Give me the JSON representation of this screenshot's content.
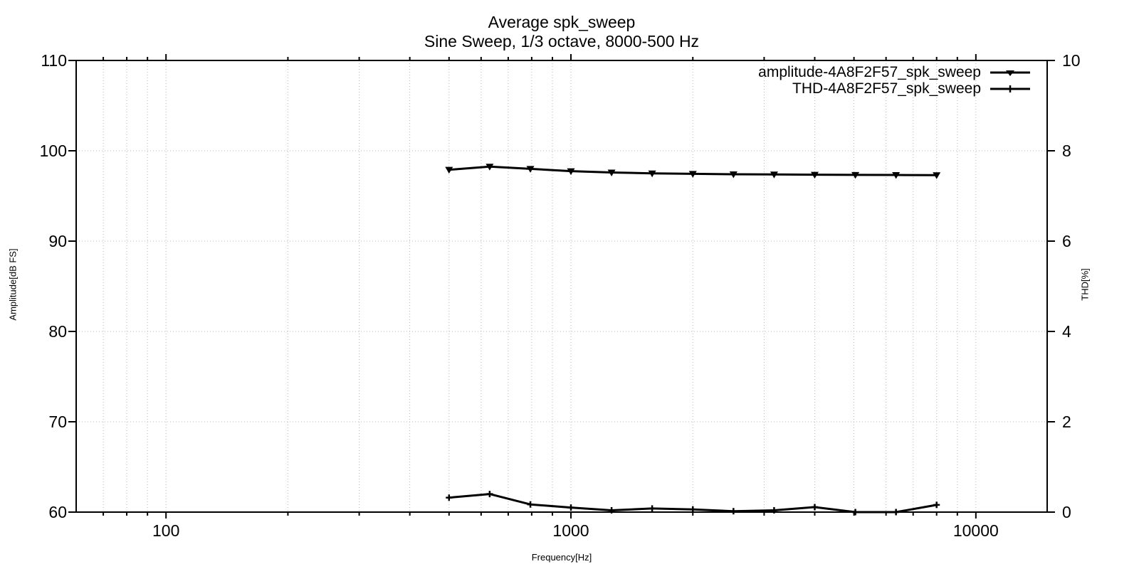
{
  "title": {
    "line1": "Average spk_sweep",
    "line2": "Sine Sweep, 1/3 octave, 8000-500 Hz"
  },
  "axes": {
    "x_label": "Frequency[Hz]",
    "y_left_label": "Amplitude[dB FS]",
    "y_right_label": "THD[%]",
    "x_ticks": [
      100,
      1000,
      10000
    ],
    "y_left_ticks": [
      60,
      70,
      80,
      90,
      100,
      110
    ],
    "y_right_ticks": [
      0,
      2,
      4,
      6,
      8,
      10
    ]
  },
  "legend": [
    {
      "label": "amplitude-4A8F2F57_spk_sweep",
      "marker": "filled-triangle-down"
    },
    {
      "label": "THD-4A8F2F57_spk_sweep",
      "marker": "plus"
    }
  ],
  "colors": {
    "line": "#000000",
    "grid": "#b8b8b8",
    "text": "#000000",
    "background": "#ffffff"
  },
  "chart_data": {
    "type": "line",
    "title": "Average spk_sweep",
    "subtitle": "Sine Sweep, 1/3 octave, 8000-500 Hz",
    "xlabel": "Frequency[Hz]",
    "ylabel_left": "Amplitude[dB FS]",
    "ylabel_right": "THD[%]",
    "x_scale": "log",
    "xlim": [
      60,
      15000
    ],
    "ylim_left": [
      60,
      110
    ],
    "ylim_right": [
      0,
      10
    ],
    "grid": true,
    "legend_position": "top-right-inside",
    "x": [
      500,
      630,
      794,
      1000,
      1260,
      1587,
      2000,
      2520,
      3175,
      4000,
      5040,
      6350,
      8000
    ],
    "series": [
      {
        "name": "amplitude-4A8F2F57_spk_sweep",
        "axis": "left",
        "marker": "filled-triangle-down",
        "values": [
          97.9,
          98.25,
          98.0,
          97.75,
          97.6,
          97.5,
          97.45,
          97.4,
          97.38,
          97.35,
          97.33,
          97.32,
          97.3
        ]
      },
      {
        "name": "THD-4A8F2F57_spk_sweep",
        "axis": "right",
        "marker": "plus",
        "values": [
          0.32,
          0.4,
          0.17,
          0.1,
          0.04,
          0.08,
          0.06,
          0.02,
          0.04,
          0.11,
          0.0,
          0.0,
          0.16
        ]
      }
    ]
  }
}
